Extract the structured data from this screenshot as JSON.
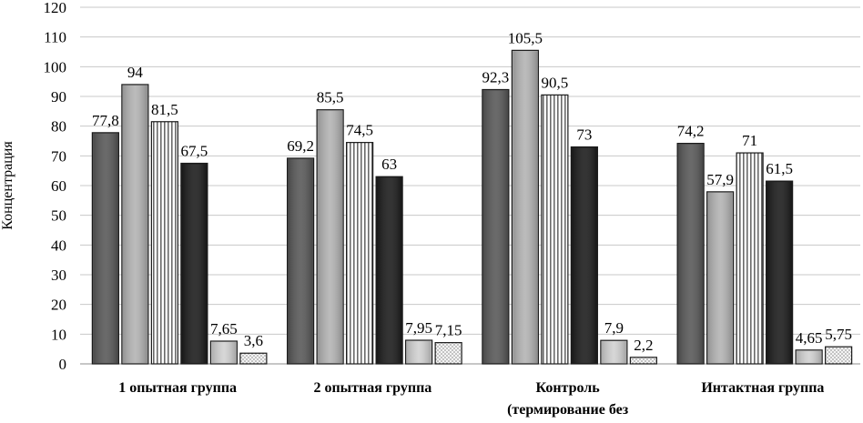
{
  "chart_data": {
    "type": "bar",
    "ylabel": "Концентрация",
    "ylim": [
      0,
      120
    ],
    "ytick_step": 10,
    "grid": true,
    "categories": [
      [
        "1 опытная группа"
      ],
      [
        "2 опытная группа"
      ],
      [
        "Контроль",
        "(термирование без"
      ],
      [
        "Интактная группа"
      ]
    ],
    "series": [
      {
        "values": [
          77.8,
          69.2,
          92.3,
          74.2
        ],
        "labels": [
          "77,8",
          "69,2",
          "92,3",
          "74,2"
        ],
        "fill": "#5a5a5a",
        "pattern": "none"
      },
      {
        "values": [
          94,
          85.5,
          105.5,
          57.9
        ],
        "labels": [
          "94",
          "85,5",
          "105,5",
          "57,9"
        ],
        "fill": "#b4b4b4",
        "pattern": "none"
      },
      {
        "values": [
          81.5,
          74.5,
          90.5,
          71
        ],
        "labels": [
          "81,5",
          "74,5",
          "90,5",
          "71"
        ],
        "fill": "#ffffff",
        "pattern": "vertical-lines"
      },
      {
        "values": [
          67.5,
          63,
          73,
          61.5
        ],
        "labels": [
          "67,5",
          "63",
          "73",
          "61,5"
        ],
        "fill": "#1e1e1e",
        "pattern": "none"
      },
      {
        "values": [
          7.65,
          7.95,
          7.9,
          4.65
        ],
        "labels": [
          "7,65",
          "7,95",
          "7,9",
          "4,65"
        ],
        "fill": "#d2d2d2",
        "pattern": "none"
      },
      {
        "values": [
          3.6,
          7.15,
          2.2,
          5.75
        ],
        "labels": [
          "3,6",
          "7,15",
          "2,2",
          "5,75"
        ],
        "fill": "#e8e8e8",
        "pattern": "dots"
      }
    ]
  }
}
